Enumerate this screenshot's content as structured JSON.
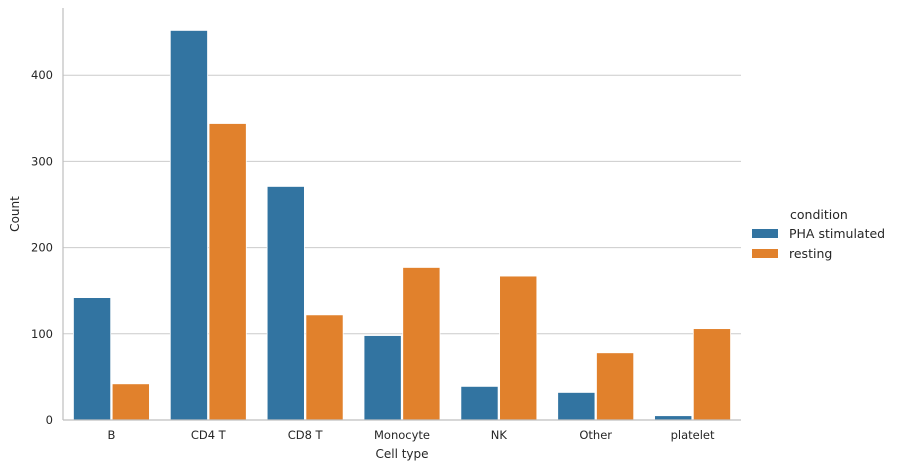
{
  "chart_data": {
    "type": "bar",
    "xlabel": "Cell type",
    "ylabel": "Count",
    "categories": [
      "B",
      "CD4 T",
      "CD8 T",
      "Monocyte",
      "NK",
      "Other",
      "platelet"
    ],
    "series": [
      {
        "name": "PHA stimulated",
        "color": "#3274a1",
        "values": [
          142,
          452,
          271,
          98,
          39,
          32,
          5
        ]
      },
      {
        "name": "resting",
        "color": "#e1812c",
        "values": [
          42,
          344,
          122,
          177,
          167,
          78,
          106
        ]
      }
    ],
    "ylim": [
      0,
      478
    ],
    "yticks": [
      0,
      100,
      200,
      300,
      400
    ],
    "grid": "horizontal",
    "legend": {
      "title": "condition",
      "placement": "right"
    }
  }
}
